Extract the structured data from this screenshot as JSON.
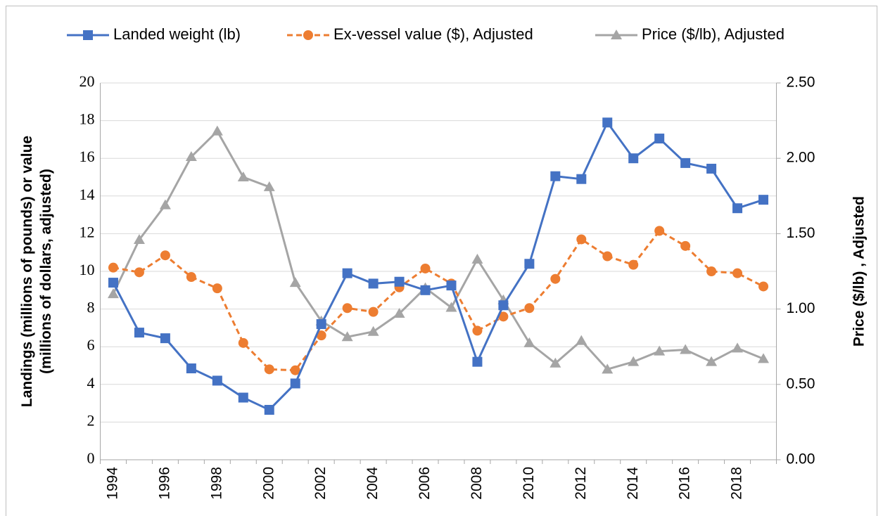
{
  "chart_data": {
    "type": "line",
    "categories": [
      "1994",
      null,
      "1996",
      null,
      "1998",
      null,
      "2000",
      null,
      "2002",
      null,
      "2004",
      null,
      "2006",
      null,
      "2008",
      null,
      "2010",
      null,
      "2012",
      null,
      "2014",
      null,
      "2016",
      null,
      "2018",
      null
    ],
    "y_label": [
      "Landings (millions of pounds) or value",
      "(millions of dollars, adjusted)"
    ],
    "y2_label": "Price ($/lb) , Adjusted",
    "ylim": [
      0,
      20
    ],
    "yticks": [
      0,
      2,
      4,
      6,
      8,
      10,
      12,
      14,
      16,
      18,
      20
    ],
    "y2lim": [
      0,
      2.5
    ],
    "y2ticks": [
      {
        "value": 0,
        "label": "0.00"
      },
      {
        "value": 0.5,
        "label": "0.50"
      },
      {
        "value": 1,
        "label": "1.00"
      },
      {
        "value": 1.5,
        "label": "1.50"
      },
      {
        "value": 2,
        "label": "2.00"
      },
      {
        "value": 2.5,
        "label": "2.50"
      }
    ],
    "grid": true,
    "legend": "top",
    "series": [
      {
        "name": "Landed weight (lb)",
        "color": "#4472c4",
        "marker": "square",
        "line_style": "solid",
        "values": [
          9.4,
          6.75,
          6.45,
          4.85,
          4.2,
          3.3,
          2.65,
          4.05,
          7.2,
          9.9,
          9.35,
          9.45,
          9.0,
          9.25,
          5.2,
          8.2,
          10.4,
          15.05,
          14.9,
          17.9,
          16.0,
          17.05,
          15.75,
          15.45,
          13.35,
          13.8
        ]
      },
      {
        "name": "Ex-vessel value ($), Adjusted",
        "color": "#ed7d31",
        "marker": "circle",
        "line_style": "dashed",
        "values": [
          10.2,
          9.95,
          10.85,
          9.7,
          9.1,
          6.2,
          4.8,
          4.75,
          6.6,
          8.05,
          7.85,
          9.15,
          10.15,
          9.35,
          6.85,
          7.6,
          8.05,
          9.6,
          11.7,
          10.8,
          10.35,
          12.15,
          11.35,
          10.0,
          9.9,
          9.2
        ]
      },
      {
        "name": "Price ($/lb), Adjusted",
        "color": "#a5a5a5",
        "marker": "triangle",
        "line_style": "solid",
        "axis": "y2",
        "values": [
          1.1,
          1.46,
          1.69,
          2.01,
          2.18,
          1.875,
          1.81,
          1.175,
          0.92,
          0.815,
          0.85,
          0.97,
          1.14,
          1.01,
          1.33,
          1.06,
          0.775,
          0.64,
          0.79,
          0.6,
          0.65,
          0.72,
          0.73,
          0.65,
          0.74,
          0.67
        ]
      }
    ]
  }
}
